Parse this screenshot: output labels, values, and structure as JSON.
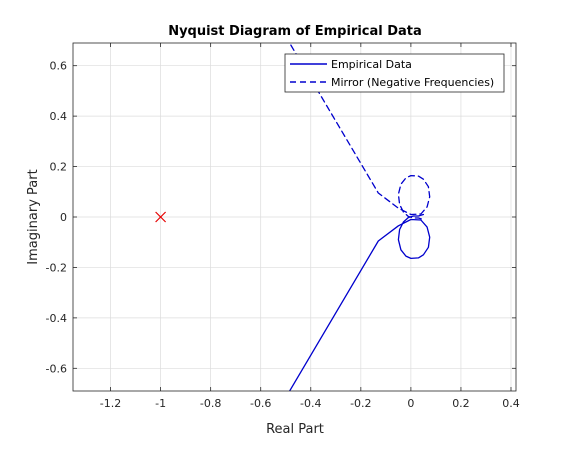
{
  "chart_data": {
    "type": "line",
    "title": "Nyquist Diagram of Empirical Data",
    "xlabel": "Real Part",
    "ylabel": "Imaginary Part",
    "xlim": [
      -1.35,
      0.42
    ],
    "ylim": [
      -0.69,
      0.69
    ],
    "xticks": [
      -1.2,
      -1,
      -0.8,
      -0.6,
      -0.4,
      -0.2,
      0,
      0.2,
      0.4
    ],
    "xtick_labels": [
      "-1.2",
      "-1",
      "-0.8",
      "-0.6",
      "-0.4",
      "-0.2",
      "0",
      "0.2",
      "0.4"
    ],
    "yticks": [
      -0.6,
      -0.4,
      -0.2,
      0,
      0.2,
      0.4,
      0.6
    ],
    "ytick_labels": [
      "-0.6",
      "-0.4",
      "-0.2",
      "0",
      "0.2",
      "0.4",
      "0.6"
    ],
    "grid": true,
    "legend_position": "top-right",
    "series": [
      {
        "name": "Empirical Data",
        "style": "solid",
        "color": "#0000cd",
        "x": [
          -0.52,
          -0.13,
          -0.05,
          0.0,
          0.04,
          0.065,
          0.075,
          0.07,
          0.05,
          0.03,
          0.0,
          -0.02,
          -0.04,
          -0.05,
          -0.045,
          -0.03,
          -0.01,
          0.01,
          0.03,
          0.05
        ],
        "y": [
          -0.75,
          -0.095,
          -0.035,
          -0.01,
          -0.012,
          -0.04,
          -0.08,
          -0.12,
          -0.15,
          -0.162,
          -0.164,
          -0.155,
          -0.13,
          -0.09,
          -0.05,
          -0.02,
          -0.002,
          0.004,
          0.004,
          0.01
        ]
      },
      {
        "name": "Mirror (Negative Frequencies)",
        "style": "dashed",
        "color": "#0000cd",
        "x": [
          -0.52,
          -0.13,
          -0.05,
          0.0,
          0.04,
          0.065,
          0.075,
          0.07,
          0.05,
          0.03,
          0.0,
          -0.02,
          -0.04,
          -0.05,
          -0.045,
          -0.03,
          -0.01,
          0.01,
          0.03,
          0.05
        ],
        "y": [
          0.75,
          0.095,
          0.035,
          0.01,
          0.012,
          0.04,
          0.08,
          0.12,
          0.15,
          0.162,
          0.164,
          0.155,
          0.13,
          0.09,
          0.05,
          0.02,
          0.002,
          -0.004,
          -0.004,
          -0.01
        ]
      }
    ],
    "markers": [
      {
        "x": -1,
        "y": 0,
        "symbol": "x",
        "color": "#e60000"
      }
    ]
  }
}
